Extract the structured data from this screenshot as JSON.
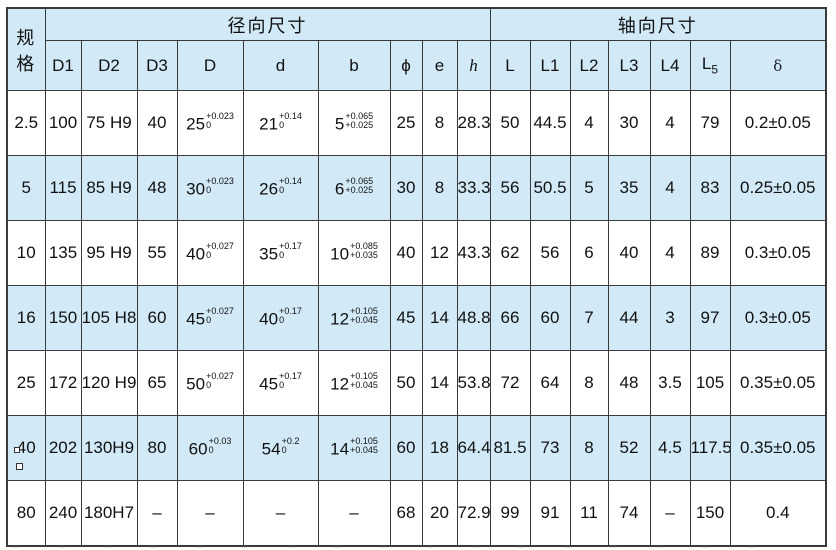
{
  "table": {
    "corner_label": "规格",
    "groups": [
      {
        "label": "径向尺寸",
        "span": 9
      },
      {
        "label": "轴向尺寸",
        "span": 7
      }
    ],
    "columns": [
      "D1",
      "D2",
      "D3",
      "D",
      "d",
      "b",
      "ϕ",
      "e",
      {
        "main": "h",
        "italic": true
      },
      "L",
      "L1",
      "L2",
      "L3",
      "L4",
      {
        "main": "L",
        "sub": "5"
      },
      {
        "main": "δ",
        "serif": true
      }
    ],
    "rows": [
      {
        "spec": "2.5",
        "cells": [
          "100",
          "75 H9",
          "40",
          {
            "main": "25",
            "sup": "+0.023",
            "sub": "0"
          },
          {
            "main": "21",
            "sup": "+0.14",
            "sub": "0"
          },
          {
            "main": "5",
            "sup": "+0.065",
            "sub": "+0.025"
          },
          "25",
          "8",
          "28.3",
          "50",
          "44.5",
          "4",
          "30",
          "4",
          "79",
          "0.2±0.05"
        ]
      },
      {
        "spec": "5",
        "cells": [
          "115",
          "85 H9",
          "48",
          {
            "main": "30",
            "sup": "+0.023",
            "sub": "0"
          },
          {
            "main": "26",
            "sup": "+0.14",
            "sub": "0"
          },
          {
            "main": "6",
            "sup": "+0.065",
            "sub": "+0.025"
          },
          "30",
          "8",
          "33.3",
          "56",
          "50.5",
          "5",
          "35",
          "4",
          "83",
          "0.25±0.05"
        ]
      },
      {
        "spec": "10",
        "cells": [
          "135",
          "95 H9",
          "55",
          {
            "main": "40",
            "sup": "+0.027",
            "sub": "0"
          },
          {
            "main": "35",
            "sup": "+0.17",
            "sub": "0"
          },
          {
            "main": "10",
            "sup": "+0.085",
            "sub": "+0.035"
          },
          "40",
          "12",
          "43.3",
          "62",
          "56",
          "6",
          "40",
          "4",
          "89",
          "0.3±0.05"
        ]
      },
      {
        "spec": "16",
        "cells": [
          "150",
          "105 H8",
          "60",
          {
            "main": "45",
            "sup": "+0.027",
            "sub": "0"
          },
          {
            "main": "40",
            "sup": "+0.17",
            "sub": "0"
          },
          {
            "main": "12",
            "sup": "+0.105",
            "sub": "+0.045"
          },
          "45",
          "14",
          "48.8",
          "66",
          "60",
          "7",
          "44",
          "3",
          "97",
          "0.3±0.05"
        ]
      },
      {
        "spec": "25",
        "cells": [
          "172",
          "120 H9",
          "65",
          {
            "main": "50",
            "sup": "+0.027",
            "sub": "0"
          },
          {
            "main": "45",
            "sup": "+0.17",
            "sub": "0"
          },
          {
            "main": "12",
            "sup": "+0.105",
            "sub": "+0.045"
          },
          "50",
          "14",
          "53.8",
          "72",
          "64",
          "8",
          "48",
          "3.5",
          "105",
          "0.35±0.05"
        ]
      },
      {
        "spec": "40",
        "artifact": true,
        "cells": [
          "202",
          "130H9",
          "80",
          {
            "main": "60",
            "sup": "+0.03",
            "sub": "0"
          },
          {
            "main": "54",
            "sup": "+0.2",
            "sub": "0"
          },
          {
            "main": "14",
            "sup": "+0.105",
            "sub": "+0.045"
          },
          "60",
          "18",
          "64.4",
          "81.5",
          "73",
          "8",
          "52",
          "4.5",
          "117.5",
          "0.35±0.05"
        ]
      },
      {
        "spec": "80",
        "cells": [
          "240",
          "180H7",
          "–",
          "–",
          "–",
          "–",
          "68",
          "20",
          "72.9",
          "99",
          "91",
          "11",
          "74",
          "–",
          "150",
          "0.4"
        ]
      }
    ]
  }
}
